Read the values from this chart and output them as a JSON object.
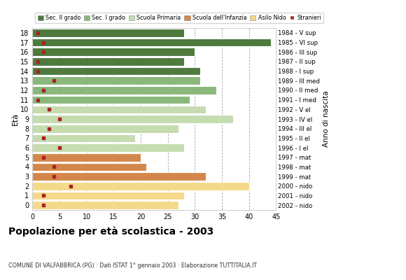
{
  "ages": [
    18,
    17,
    16,
    15,
    14,
    13,
    12,
    11,
    10,
    9,
    8,
    7,
    6,
    5,
    4,
    3,
    2,
    1,
    0
  ],
  "bar_values": [
    28,
    44,
    30,
    28,
    31,
    31,
    34,
    29,
    32,
    37,
    27,
    19,
    28,
    20,
    21,
    32,
    40,
    28,
    27
  ],
  "bar_colors": [
    "#4e7a3e",
    "#4e7a3e",
    "#4e7a3e",
    "#4e7a3e",
    "#4e7a3e",
    "#8ab87a",
    "#8ab87a",
    "#8ab87a",
    "#c5dbb0",
    "#c5dbb0",
    "#c5dbb0",
    "#c5dbb0",
    "#c5dbb0",
    "#d4874a",
    "#d4874a",
    "#d4874a",
    "#f5d98b",
    "#f5d98b",
    "#f5d98b"
  ],
  "stranieri_x": [
    1,
    2,
    2,
    1,
    1,
    4,
    2,
    1,
    3,
    5,
    3,
    2,
    5,
    2,
    4,
    4,
    7,
    2,
    2
  ],
  "right_labels": [
    "1984 - V sup",
    "1985 - VI sup",
    "1986 - III sup",
    "1987 - II sup",
    "1988 - I sup",
    "1989 - III med",
    "1990 - II med",
    "1991 - I med",
    "1992 - V el",
    "1993 - IV el",
    "1994 - III el",
    "1995 - II el",
    "1996 - I el",
    "1997 - mat",
    "1998 - mat",
    "1999 - mat",
    "2000 - nido",
    "2001 - nido",
    "2002 - nido"
  ],
  "legend_labels": [
    "Sec. II grado",
    "Sec. I grado",
    "Scuola Primaria",
    "Scuola dell'Infanzia",
    "Asilo Nido",
    "Stranieri"
  ],
  "legend_colors": [
    "#4e7a3e",
    "#8ab87a",
    "#c5dbb0",
    "#d4874a",
    "#f5d98b",
    "#aa2222"
  ],
  "title": "Popolazione per età scolastica - 2003",
  "subtitle": "COMUNE DI VALFABBRICA (PG) · Dati ISTAT 1° gennaio 2003 · Elaborazione TUTTITALIA.IT",
  "ylabel_left": "Età",
  "ylabel_right": "Anno di nascita",
  "xlim": [
    0,
    45
  ],
  "xticks": [
    0,
    5,
    10,
    15,
    20,
    25,
    30,
    35,
    40,
    45
  ],
  "grid_color": "#aaaaaa",
  "bg_color": "#ffffff",
  "bar_edge_color": "#ffffff",
  "stranieri_color": "#aa2222"
}
